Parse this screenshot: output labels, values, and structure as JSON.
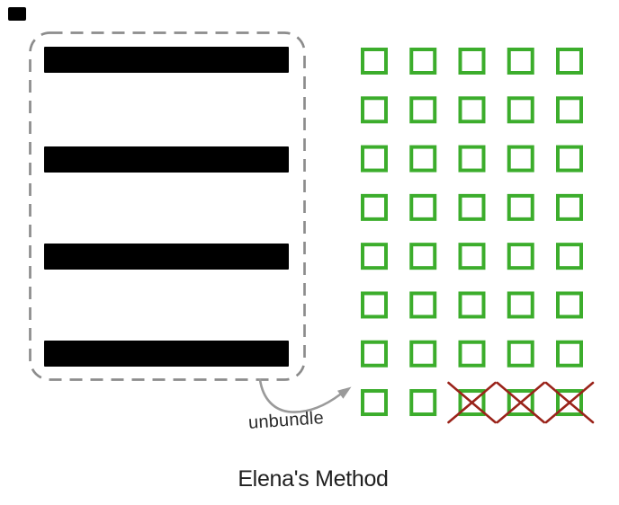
{
  "diagram": {
    "title": "Elena's Method",
    "arrow_label": "unbundle",
    "bundle_box": {
      "bar_count": 4
    },
    "grid": {
      "rows": 8,
      "columns": 5,
      "total_squares": 40,
      "crossed_out": [
        {
          "row": 8,
          "col": 3
        },
        {
          "row": 8,
          "col": 4
        },
        {
          "row": 8,
          "col": 5
        }
      ],
      "crossed_count": 3
    },
    "colors": {
      "square_green": "#3cad2c",
      "cross_red": "#9a231a",
      "dash_gray": "#8c8c8c",
      "arrow_gray": "#9a9a9a",
      "bar_black": "#000000",
      "text_dark": "#1f1f1f"
    }
  }
}
